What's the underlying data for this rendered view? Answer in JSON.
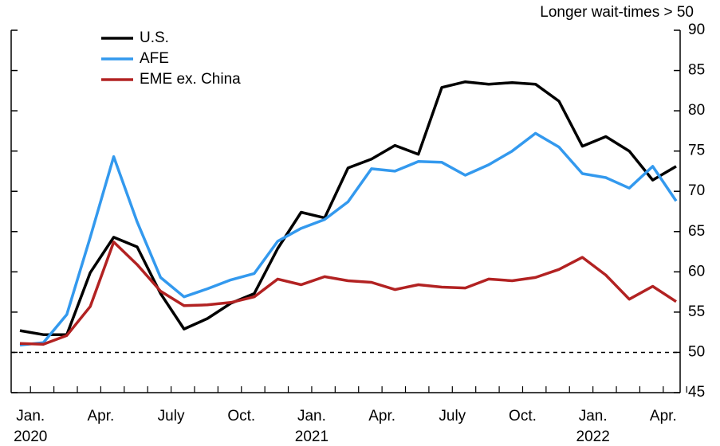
{
  "chart_data": {
    "type": "line",
    "annotation": "Longer wait-times > 50",
    "categories": [
      "Jan. 2020",
      null,
      null,
      "Apr.",
      null,
      null,
      "July",
      null,
      null,
      "Oct.",
      null,
      null,
      "Jan. 2021",
      null,
      null,
      "Apr.",
      null,
      null,
      "July",
      null,
      null,
      "Oct.",
      null,
      null,
      "Jan. 2022",
      null,
      null,
      "Apr.",
      null
    ],
    "series": [
      {
        "name": "U.S.",
        "color": "#000000",
        "values": [
          52.7,
          52.2,
          52.2,
          59.9,
          64.3,
          63.1,
          57.3,
          52.9,
          54.2,
          56.1,
          57.3,
          62.9,
          67.4,
          66.7,
          72.9,
          74.0,
          75.7,
          74.6,
          82.9,
          83.6,
          83.3,
          83.5,
          83.3,
          81.2,
          75.6,
          76.8,
          75.0,
          71.4,
          73.1
        ]
      },
      {
        "name": "AFE",
        "color": "#3399ee",
        "values": [
          50.9,
          51.2,
          54.7,
          64.3,
          74.3,
          66.2,
          59.3,
          56.9,
          57.9,
          59.0,
          59.8,
          63.8,
          65.4,
          66.5,
          68.7,
          72.8,
          72.5,
          73.7,
          73.6,
          72.0,
          73.3,
          75.0,
          77.2,
          75.5,
          72.2,
          71.7,
          70.4,
          73.1,
          68.8
        ]
      },
      {
        "name": "EME ex. China",
        "color": "#b22222",
        "values": [
          51.1,
          51.0,
          52.1,
          55.7,
          63.7,
          60.9,
          57.6,
          55.8,
          55.9,
          56.2,
          56.9,
          59.1,
          58.4,
          59.4,
          58.9,
          58.7,
          57.8,
          58.4,
          58.1,
          58.0,
          59.1,
          58.9,
          59.3,
          60.3,
          61.8,
          59.6,
          56.6,
          58.2,
          56.3
        ]
      }
    ],
    "reference_line": 50,
    "ylim": [
      45,
      90
    ],
    "yticks": [
      45,
      50,
      55,
      60,
      65,
      70,
      75,
      80,
      85,
      90
    ],
    "y_axis_side": "right",
    "legend": "upper left",
    "grid": false
  }
}
